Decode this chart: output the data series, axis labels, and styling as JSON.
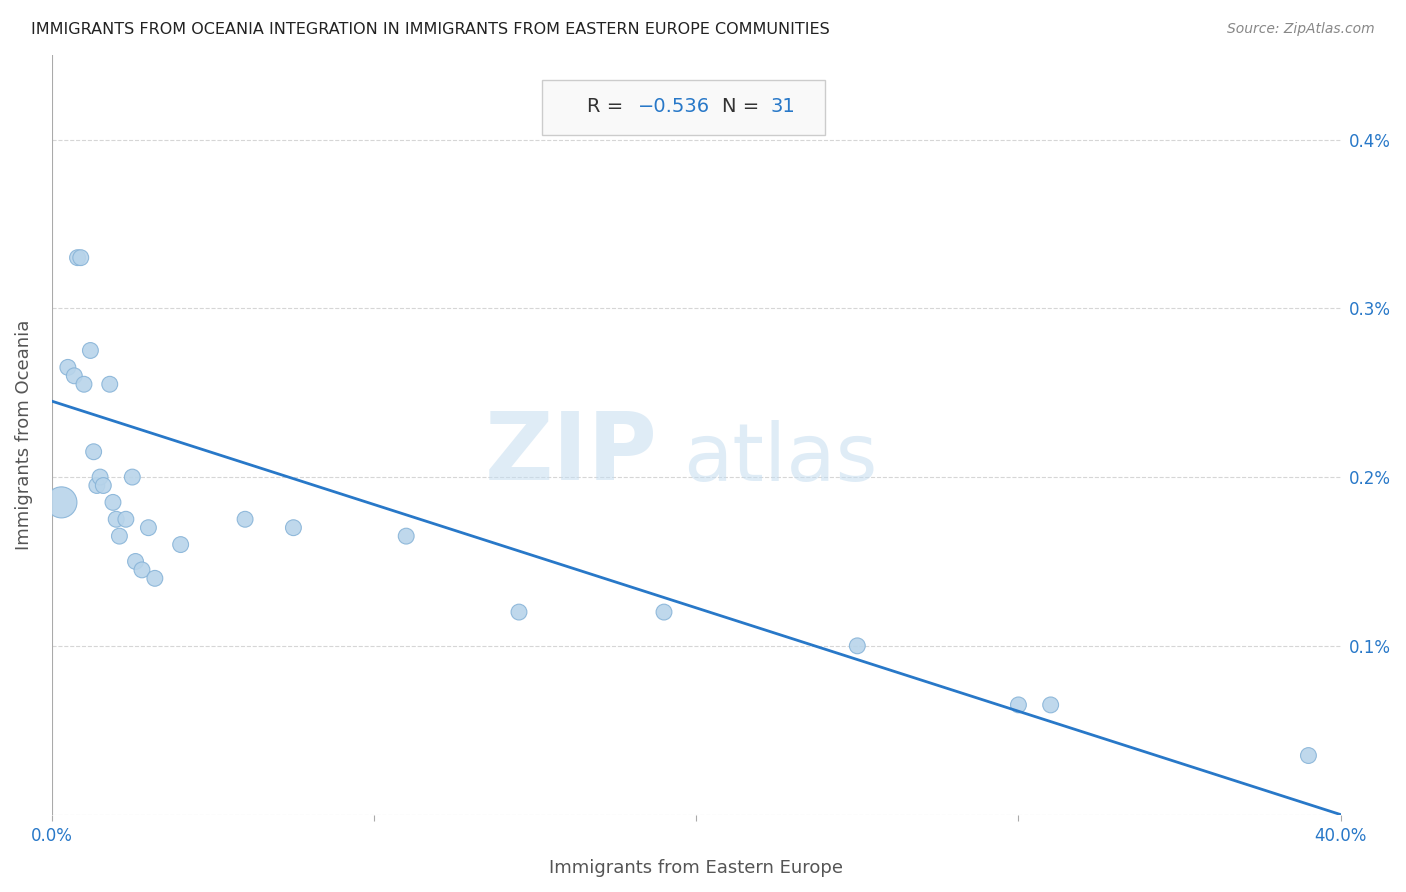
{
  "title": "IMMIGRANTS FROM OCEANIA INTEGRATION IN IMMIGRANTS FROM EASTERN EUROPE COMMUNITIES",
  "source": "Source: ZipAtlas.com",
  "xlabel": "Immigrants from Eastern Europe",
  "ylabel": "Immigrants from Oceania",
  "xlim": [
    0.0,
    0.4
  ],
  "ylim": [
    0.0,
    0.0045
  ],
  "R": -0.536,
  "N": 31,
  "scatter_color": "#b8d4ea",
  "scatter_edge_color": "#88b4d8",
  "line_color": "#2878c8",
  "R_label_color": "#333333",
  "R_value_color": "#2878c8",
  "N_label_color": "#333333",
  "N_value_color": "#2878c8",
  "axis_label_color": "#555555",
  "tick_label_color": "#2878c8",
  "title_color": "#222222",
  "source_color": "#888888",
  "box_facecolor": "#f9f9f9",
  "box_edgecolor": "#cccccc",
  "grid_color": "#cccccc",
  "background_color": "#ffffff",
  "scatter_x": [
    0.003,
    0.005,
    0.007,
    0.008,
    0.009,
    0.01,
    0.012,
    0.013,
    0.014,
    0.015,
    0.016,
    0.018,
    0.019,
    0.02,
    0.021,
    0.023,
    0.025,
    0.026,
    0.028,
    0.03,
    0.032,
    0.04,
    0.06,
    0.075,
    0.11,
    0.145,
    0.19,
    0.25,
    0.3,
    0.31,
    0.39
  ],
  "scatter_y": [
    0.00185,
    0.00265,
    0.0026,
    0.0033,
    0.0033,
    0.00255,
    0.00275,
    0.00215,
    0.00195,
    0.002,
    0.00195,
    0.00255,
    0.00185,
    0.00175,
    0.00165,
    0.00175,
    0.002,
    0.0015,
    0.00145,
    0.0017,
    0.0014,
    0.0016,
    0.00175,
    0.0017,
    0.00165,
    0.0012,
    0.0012,
    0.001,
    0.00065,
    0.00065,
    0.00035
  ],
  "scatter_sizes": [
    500,
    130,
    130,
    130,
    130,
    130,
    130,
    130,
    130,
    130,
    130,
    130,
    130,
    130,
    130,
    130,
    130,
    130,
    130,
    130,
    130,
    130,
    130,
    130,
    130,
    130,
    130,
    130,
    130,
    130,
    130
  ],
  "trend_x": [
    0.0,
    0.4
  ],
  "trend_y": [
    0.00245,
    0.0
  ],
  "watermark_zip": "ZIP",
  "watermark_atlas": "atlas",
  "watermark_color_zip": "#c5ddf0",
  "watermark_color_atlas": "#c5ddf0"
}
